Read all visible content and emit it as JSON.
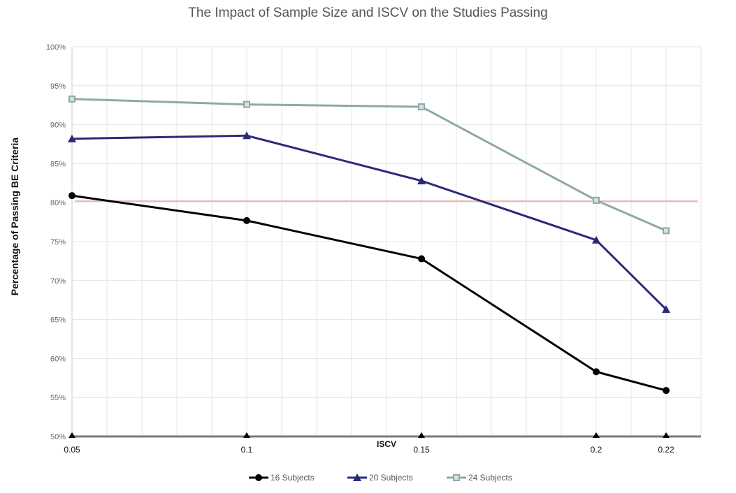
{
  "chart_data": {
    "type": "line",
    "title": "The Impact of Sample Size and ISCV on the Studies Passing",
    "xlabel": "ISCV",
    "ylabel": "Percentage of Passing BE Criteria",
    "x": [
      0.05,
      0.1,
      0.15,
      0.2,
      0.22
    ],
    "x_tick_labels": [
      "0.05",
      "0.1",
      "0.15",
      "0.2",
      "0.22"
    ],
    "xlim": [
      0.05,
      0.23
    ],
    "ylim": [
      50,
      100
    ],
    "y_ticks": [
      50,
      55,
      60,
      65,
      70,
      75,
      80,
      85,
      90,
      95,
      100
    ],
    "y_tick_labels": [
      "50%",
      "55%",
      "60%",
      "65%",
      "70%",
      "75%",
      "80%",
      "85%",
      "90%",
      "95%",
      "100%"
    ],
    "grid": true,
    "reference_line": {
      "y": 80.2,
      "color": "#f4b6b6"
    },
    "legend_position": "bottom-center",
    "series": [
      {
        "name": "16 Subjects",
        "color": "#000000",
        "marker": "circle",
        "values": [
          80.9,
          77.7,
          72.8,
          58.3,
          55.9
        ]
      },
      {
        "name": "20 Subjects",
        "color": "#2b2a7a",
        "marker": "triangle",
        "values": [
          88.2,
          88.6,
          82.8,
          75.2,
          66.3
        ]
      },
      {
        "name": "24 Subjects",
        "color": "#8ea8a8",
        "marker": "square",
        "values": [
          93.3,
          92.6,
          92.3,
          80.3,
          76.4
        ]
      }
    ]
  }
}
